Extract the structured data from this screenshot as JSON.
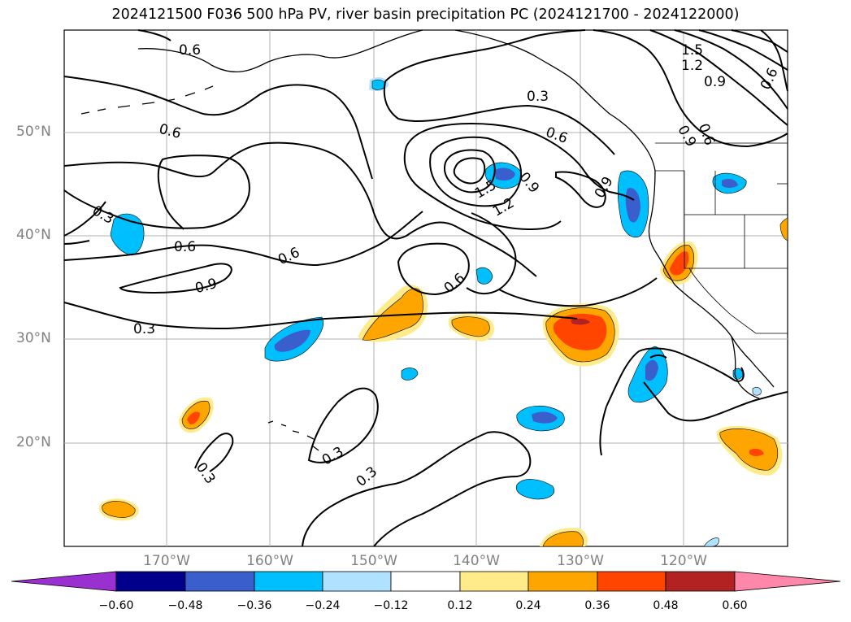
{
  "title": "2024121500 F036 500 hPa PV, river basin precipitation PC (2024121700 - 2024122000)",
  "lat_labels": [
    "50°N",
    "40°N",
    "30°N",
    "20°N"
  ],
  "lon_labels": [
    "170°W",
    "160°W",
    "150°W",
    "140°W",
    "130°W",
    "120°W"
  ],
  "contour_labels": [
    "0.6",
    "1.5",
    "1.2",
    "0.9",
    "0.6",
    "0.3",
    "0.6",
    "0.9",
    "0.6",
    "0.9",
    "0.3",
    "0.6",
    "0.6",
    "1.5",
    "1.2",
    "0.9",
    "0.6",
    "0.9",
    "0.6",
    "0.3",
    "0.3",
    "0.3",
    "0.3",
    "0.6"
  ],
  "colorbar": {
    "ticks": [
      "−0.60",
      "−0.48",
      "−0.36",
      "−0.24",
      "−0.12",
      "0.12",
      "0.24",
      "0.36",
      "0.48",
      "0.60"
    ],
    "colors": [
      "#9b30d0",
      "#00008b",
      "#3a5fcd",
      "#00bfff",
      "#b0e2ff",
      "#ffffff",
      "#ffeb8a",
      "#ffa500",
      "#ff4500",
      "#b22222",
      "#ff88aa"
    ]
  },
  "colors": {
    "grid": "#b0b0b0",
    "axis_label": "#808080",
    "contour": "#000000"
  }
}
